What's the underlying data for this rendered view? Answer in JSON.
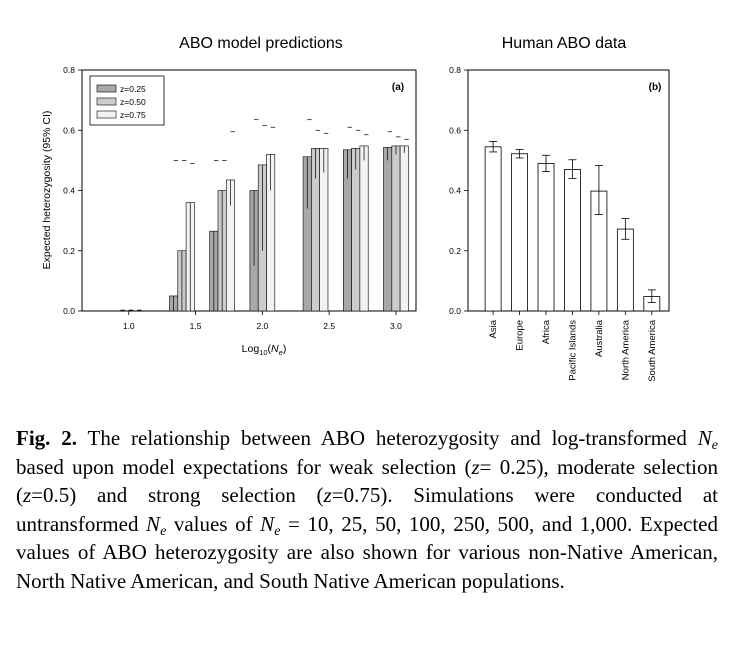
{
  "chart_data": [
    {
      "type": "bar",
      "title": "ABO model predictions",
      "panel_label": "(a)",
      "xlabel_main": "Log",
      "xlabel_sub1": "10",
      "xlabel_paren_open": "(",
      "xlabel_var": "N",
      "xlabel_sub2": "e",
      "xlabel_paren_close": ")",
      "ylabel": "Expected heterozygosity (95% CI)",
      "ylim": [
        0,
        0.8
      ],
      "yticks": [
        "0.0",
        "0.2",
        "0.4",
        "0.6",
        "0.8"
      ],
      "xlim": [
        0.65,
        3.15
      ],
      "xticks": [
        1.0,
        1.5,
        2.0,
        2.5,
        3.0
      ],
      "xtick_labels": [
        "1.0",
        "1.5",
        "2.0",
        "2.5",
        "3.0"
      ],
      "x": [
        1.0,
        1.398,
        1.699,
        2.0,
        2.398,
        2.699,
        3.0
      ],
      "series": [
        {
          "name": "z=0.25",
          "color": "#a8a8a8",
          "values": [
            0.0,
            0.05,
            0.265,
            0.4,
            0.512,
            0.535,
            0.543
          ],
          "lower": [
            0.0,
            0.0,
            0.0,
            0.15,
            0.34,
            0.44,
            0.5
          ],
          "upper": [
            0.003,
            0.5,
            0.5,
            0.635,
            0.635,
            0.61,
            0.595
          ]
        },
        {
          "name": "z=0.50",
          "color": "#cccccc",
          "values": [
            0.0,
            0.2,
            0.4,
            0.485,
            0.54,
            0.54,
            0.548
          ],
          "lower": [
            0.0,
            0.0,
            0.0,
            0.2,
            0.44,
            0.47,
            0.52
          ],
          "upper": [
            0.003,
            0.5,
            0.5,
            0.615,
            0.6,
            0.6,
            0.578
          ]
        },
        {
          "name": "z=0.75",
          "color": "#f2f2f2",
          "values": [
            0.0,
            0.36,
            0.435,
            0.52,
            0.54,
            0.548,
            0.548
          ],
          "lower": [
            0.0,
            0.0,
            0.35,
            0.4,
            0.46,
            0.5,
            0.525
          ],
          "upper": [
            0.003,
            0.49,
            0.595,
            0.61,
            0.59,
            0.585,
            0.57
          ]
        }
      ],
      "legend": [
        "z=0.25",
        "z=0.50",
        "z=0.75"
      ],
      "legend_position": "top-left"
    },
    {
      "type": "bar",
      "title": "Human ABO data",
      "panel_label": "(b)",
      "ylim": [
        0,
        0.8
      ],
      "yticks": [
        "0.0",
        "0.2",
        "0.4",
        "0.6",
        "0.8"
      ],
      "categories": [
        "Asia",
        "Europe",
        "Africa",
        "Pacific Islands",
        "Australia",
        "North America",
        "South America"
      ],
      "values": [
        0.545,
        0.522,
        0.49,
        0.47,
        0.398,
        0.272,
        0.048
      ],
      "lower": [
        0.528,
        0.508,
        0.463,
        0.44,
        0.32,
        0.238,
        0.028
      ],
      "upper": [
        0.563,
        0.536,
        0.517,
        0.502,
        0.483,
        0.307,
        0.07
      ],
      "color": "#ffffff"
    }
  ],
  "caption": {
    "fig_label": "Fig. 2.",
    "p1": " The relationship between ABO heterozygosity and log-transformed ",
    "v1": "N",
    "s1": "e",
    "p2": " based upon model expectations for weak selection (",
    "z1": "z",
    "p3": "= 0.25), moderate selection (",
    "z2": "z",
    "p4": "=0.5) and strong selection (",
    "z3": "z",
    "p5": "=0.75). Simulations were conducted at untransformed ",
    "v2": "N",
    "s2": "e",
    "p6": " values of ",
    "v3": "N",
    "s3": "e",
    "p7": " = 10, 25, 50, 100, 250, 500, and 1,000. Expected values of ABO heterozygosity are also shown for various non-Native American, North Native American, and South Native American populations."
  }
}
